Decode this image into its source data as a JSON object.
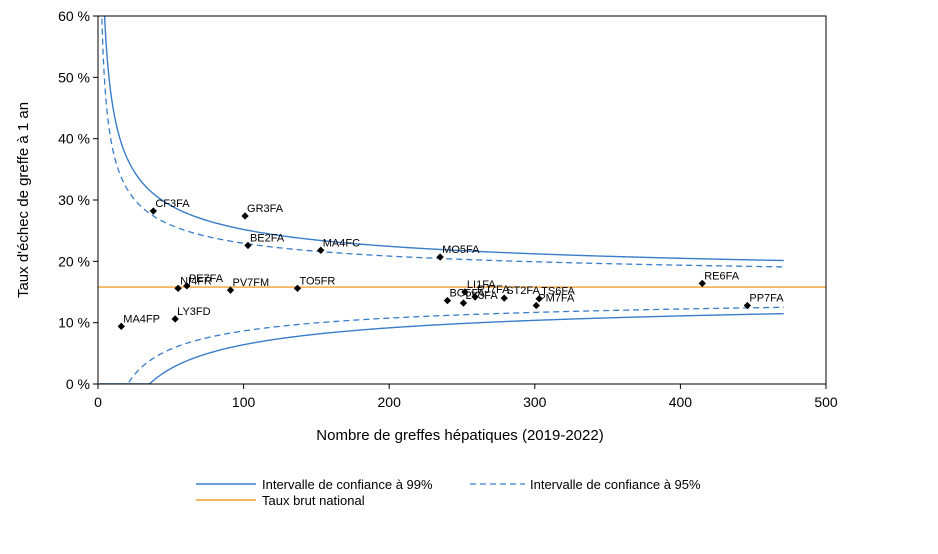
{
  "chart_data": {
    "type": "scatter",
    "xlabel": "Nombre de greffes hépatiques (2019-2022)",
    "ylabel": "Taux d'échec de greffe à 1 an",
    "xlim": [
      0,
      500
    ],
    "ylim": [
      0,
      60
    ],
    "x_ticks": [
      0,
      100,
      200,
      300,
      400,
      500
    ],
    "y_ticks": [
      0,
      10,
      20,
      30,
      40,
      50,
      60
    ],
    "y_tick_suffix": " %",
    "national_rate": 15.8,
    "points": [
      {
        "label": "CF3FA",
        "x": 38,
        "y": 28.2
      },
      {
        "label": "GR3FA",
        "x": 101,
        "y": 27.4
      },
      {
        "label": "BE2FA",
        "x": 103,
        "y": 22.6
      },
      {
        "label": "MA4FC",
        "x": 153,
        "y": 21.8
      },
      {
        "label": "MO5FA",
        "x": 235,
        "y": 20.7
      },
      {
        "label": "PE7FA",
        "x": 61,
        "y": 16.0
      },
      {
        "label": "NI4FR",
        "x": 55,
        "y": 15.6
      },
      {
        "label": "PV7FM",
        "x": 91,
        "y": 15.3
      },
      {
        "label": "TO5FR",
        "x": 137,
        "y": 15.6
      },
      {
        "label": "LI1FA",
        "x": 252,
        "y": 15.0
      },
      {
        "label": "BO5FA",
        "x": 240,
        "y": 13.6
      },
      {
        "label": "ST2FA",
        "x": 279,
        "y": 14.0
      },
      {
        "label": "LY3FA",
        "x": 251,
        "y": 13.2
      },
      {
        "label": "PJ7FA",
        "x": 259,
        "y": 14.2
      },
      {
        "label": "TS6FA",
        "x": 303,
        "y": 13.9
      },
      {
        "label": "PM7FA",
        "x": 301,
        "y": 12.8
      },
      {
        "label": "RE6FA",
        "x": 415,
        "y": 16.4
      },
      {
        "label": "PP7FA",
        "x": 446,
        "y": 12.8
      },
      {
        "label": "MA4FP",
        "x": 16,
        "y": 9.4
      },
      {
        "label": "LY3FD",
        "x": 53,
        "y": 10.6
      }
    ],
    "series": [
      {
        "name": "Intervalle de confiance à 99%",
        "style": "solid",
        "color": "#3a7dc9"
      },
      {
        "name": "Intervalle de confiance à 95%",
        "style": "dashed",
        "color": "#3a7dc9"
      },
      {
        "name": "Taux brut national",
        "style": "solid",
        "color": "#f0a030"
      }
    ],
    "funnel_x_max": 471,
    "legend_position": "bottom",
    "grid": false
  }
}
